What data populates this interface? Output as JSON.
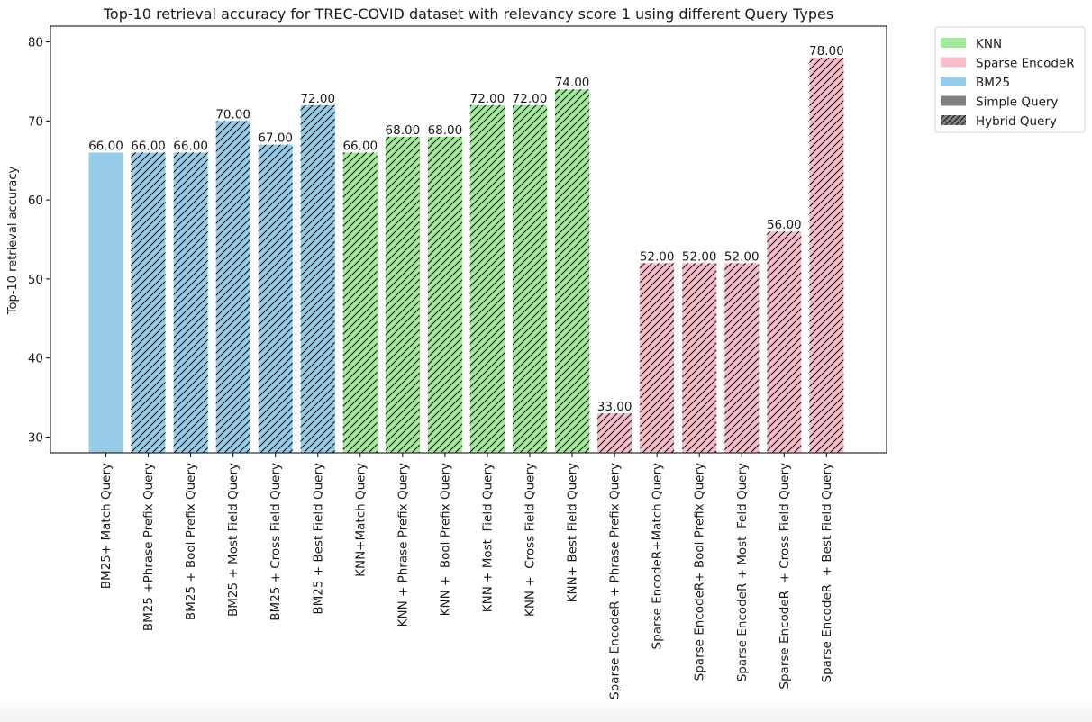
{
  "chart_data": {
    "type": "bar",
    "title": "Top-10 retrieval accuracy for TREC-COVID dataset with relevancy score 1 using different Query Types",
    "ylabel": "Top-10 retrieval accuracy",
    "xlabel": "",
    "ylim": [
      28,
      82
    ],
    "yticks": [
      30,
      40,
      50,
      60,
      70,
      80
    ],
    "grid": false,
    "legend_position": "outside-top-right",
    "categories": [
      "BM25+ Match Query",
      "BM25 +Phrase Prefix Query",
      "BM25 + Bool Prefix Query",
      "BM25 + Most Field Query",
      "BM25 + Cross Field Query",
      "BM25 + Best Field Query",
      "KNN+Match Query",
      "KNN + Phrase Prefix Query",
      "KNN +  Bool Prefix Query",
      "KNN + Most  Field Query",
      "KNN +  Cross Field Query",
      "KNN+ Best Field Query",
      "Sparse EncodeR + Phrase Prefix Query",
      "Sparse EncodeR+Match Query",
      "Sparse EncodeR+ Bool Prefix Query",
      "Sparse EncodeR + Most  Feld Query",
      "Sparse EncodeR  + Cross Field Query",
      "Sparse EncodeR  + Best Field Query"
    ],
    "values": [
      66,
      66,
      66,
      70,
      67,
      72,
      66,
      68,
      68,
      72,
      72,
      74,
      33,
      52,
      52,
      52,
      56,
      78
    ],
    "value_labels": [
      "66.00",
      "66.00",
      "66.00",
      "70.00",
      "67.00",
      "72.00",
      "66.00",
      "68.00",
      "68.00",
      "72.00",
      "72.00",
      "74.00",
      "33.00",
      "52.00",
      "52.00",
      "52.00",
      "56.00",
      "78.00"
    ],
    "method": [
      "BM25",
      "BM25",
      "BM25",
      "BM25",
      "BM25",
      "BM25",
      "KNN",
      "KNN",
      "KNN",
      "KNN",
      "KNN",
      "KNN",
      "Sparse EncodeR",
      "Sparse EncodeR",
      "Sparse EncodeR",
      "Sparse EncodeR",
      "Sparse EncodeR",
      "Sparse EncodeR"
    ],
    "query_type": [
      "Simple Query",
      "Hybrid Query",
      "Hybrid Query",
      "Hybrid Query",
      "Hybrid Query",
      "Hybrid Query",
      "Hybrid Query",
      "Hybrid Query",
      "Hybrid Query",
      "Hybrid Query",
      "Hybrid Query",
      "Hybrid Query",
      "Hybrid Query",
      "Hybrid Query",
      "Hybrid Query",
      "Hybrid Query",
      "Hybrid Query",
      "Hybrid Query"
    ],
    "colors": {
      "KNN": "#a3e89b",
      "Sparse EncodeR": "#f5bfca",
      "BM25": "#97cce8",
      "Simple Query": "#808080",
      "Hybrid Query": "#808080"
    },
    "legend": [
      {
        "label": "KNN",
        "color_key": "KNN",
        "hatch": false
      },
      {
        "label": "Sparse EncodeR",
        "color_key": "Sparse EncodeR",
        "hatch": false
      },
      {
        "label": "BM25",
        "color_key": "BM25",
        "hatch": false
      },
      {
        "label": "Simple Query",
        "color_key": "Simple Query",
        "hatch": false
      },
      {
        "label": "Hybrid Query",
        "color_key": "Hybrid Query",
        "hatch": true
      }
    ]
  }
}
